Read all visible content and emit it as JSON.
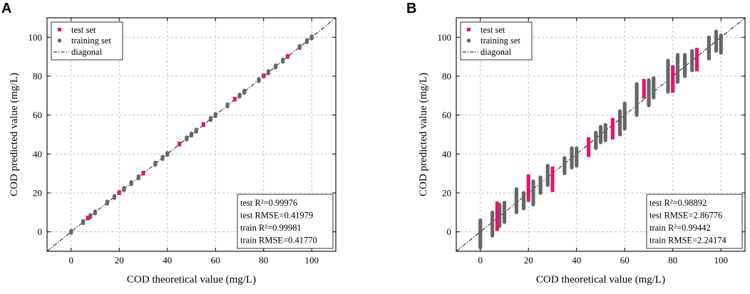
{
  "chart_data": [
    {
      "panel": "A",
      "type": "scatter",
      "xlabel": "COD theoretical value (mg/L)",
      "ylabel": "COD predicted value (mg/L)",
      "xlim": [
        -10,
        110
      ],
      "ylim": [
        -10,
        110
      ],
      "xticks": [
        "0",
        "20",
        "40",
        "60",
        "80",
        "100"
      ],
      "yticks": [
        "0",
        "20",
        "40",
        "60",
        "80",
        "100"
      ],
      "grid": true,
      "legend": {
        "placement": "top-left",
        "entries": [
          "test set",
          "training set",
          "diagonal"
        ]
      },
      "series": [
        {
          "name": "training set",
          "color": "#666666",
          "x": [
            0,
            5,
            8,
            10,
            15,
            18,
            22,
            25,
            28,
            35,
            38,
            40,
            48,
            50,
            52,
            58,
            60,
            65,
            70,
            72,
            78,
            82,
            85,
            88,
            95,
            98,
            100
          ],
          "ylow": [
            -0.6,
            4.4,
            7.4,
            9.4,
            14.4,
            17.4,
            21.4,
            24.4,
            27.4,
            34.4,
            37.4,
            39.4,
            47.4,
            49.4,
            51.4,
            57.4,
            59.4,
            64.4,
            69.4,
            71.4,
            77.4,
            81.4,
            84.4,
            87.4,
            94.4,
            97.4,
            99.4
          ],
          "yhigh": [
            0.6,
            5.6,
            8.6,
            10.6,
            15.6,
            18.6,
            22.6,
            25.6,
            28.6,
            35.6,
            38.6,
            40.6,
            48.6,
            50.6,
            52.6,
            58.6,
            60.6,
            65.6,
            70.6,
            72.6,
            78.6,
            82.6,
            85.6,
            88.6,
            95.6,
            98.6,
            100.6
          ]
        },
        {
          "name": "test set",
          "color": "#e0176f",
          "x": [
            7,
            20,
            30,
            45,
            55,
            68,
            80,
            90
          ],
          "ylow": [
            6.5,
            19.5,
            29.5,
            44.5,
            54.5,
            67.5,
            79.5,
            89.5
          ],
          "yhigh": [
            7.8,
            20.8,
            30.8,
            45.8,
            55.8,
            68.8,
            80.8,
            90.8
          ]
        },
        {
          "name": "diagonal",
          "x": [
            -10,
            110
          ],
          "y": [
            -10,
            110
          ]
        }
      ],
      "stats": [
        "test R²=0.99976",
        "test RMSE=0.41979",
        "train R²=0.99981",
        "train RMSE=0.41770"
      ]
    },
    {
      "panel": "B",
      "type": "scatter",
      "xlabel": "COD theoretical value (mg/L)",
      "ylabel": "COD predicted value (mg/L)",
      "xlim": [
        -10,
        110
      ],
      "ylim": [
        -10,
        110
      ],
      "xticks": [
        "0",
        "20",
        "40",
        "60",
        "80",
        "100"
      ],
      "yticks": [
        "0",
        "20",
        "40",
        "60",
        "80",
        "100"
      ],
      "grid": true,
      "legend": {
        "placement": "top-left",
        "entries": [
          "test set",
          "training set",
          "diagonal"
        ]
      },
      "series": [
        {
          "name": "training set",
          "color": "#666666",
          "x": [
            0,
            5,
            8,
            10,
            15,
            18,
            22,
            25,
            28,
            35,
            38,
            40,
            48,
            50,
            52,
            58,
            60,
            65,
            70,
            72,
            78,
            82,
            85,
            88,
            95,
            98,
            100
          ],
          "ylow": [
            -8,
            -2,
            3,
            5,
            10,
            12,
            14,
            20,
            24,
            30,
            33,
            34,
            43,
            46,
            47,
            50,
            53,
            60,
            65,
            69,
            72,
            77,
            80,
            83,
            89,
            93,
            92
          ],
          "yhigh": [
            6,
            10,
            14,
            15,
            22,
            20,
            26,
            28,
            34,
            38,
            43,
            43,
            51,
            54,
            55,
            62,
            66,
            76,
            78,
            79,
            88,
            91,
            91,
            93,
            100,
            103,
            101
          ]
        },
        {
          "name": "test set",
          "color": "#e0176f",
          "x": [
            7,
            20,
            30,
            45,
            55,
            68,
            80,
            90
          ],
          "ylow": [
            1,
            16,
            21,
            39,
            48,
            69,
            72,
            83
          ],
          "yhigh": [
            15,
            29,
            33,
            48,
            58,
            78,
            85,
            94
          ]
        },
        {
          "name": "diagonal",
          "x": [
            -10,
            110
          ],
          "y": [
            -10,
            110
          ]
        }
      ],
      "stats": [
        "test R²=0.98892",
        "test RMSE=2.86776",
        "train R²=0.99442",
        "train RMSE=2.24174"
      ]
    }
  ]
}
